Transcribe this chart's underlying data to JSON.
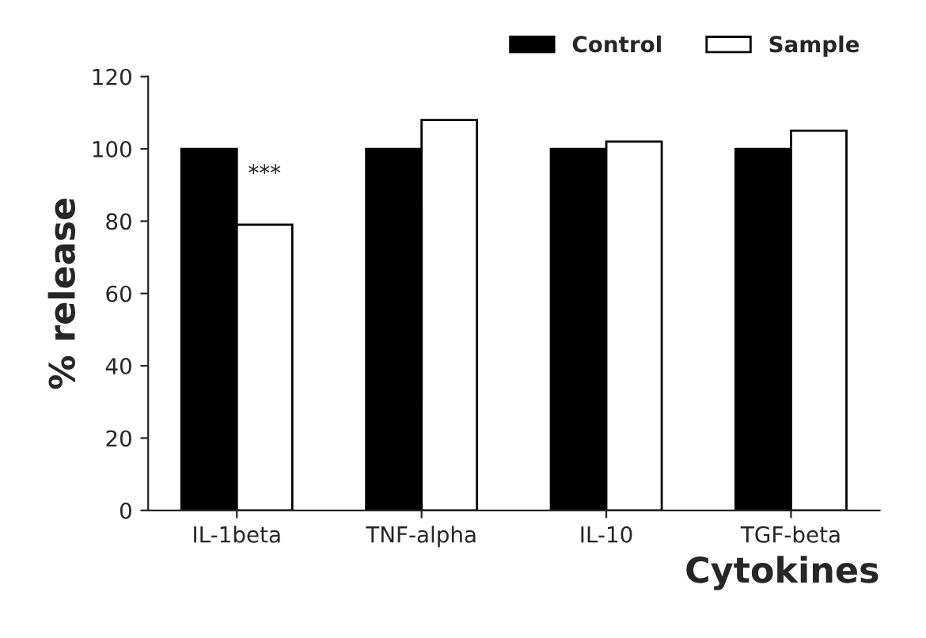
{
  "chart_data": {
    "type": "bar",
    "xlabel": "Cytokines",
    "ylabel": "% release",
    "categories": [
      "IL-1beta",
      "TNF-alpha",
      "IL-10",
      "TGF-beta"
    ],
    "series": [
      {
        "name": "Control",
        "color": "#000000",
        "values": [
          100,
          100,
          100,
          100
        ]
      },
      {
        "name": "Sample",
        "color": "#ffffff",
        "values": [
          79,
          108,
          102,
          105
        ]
      }
    ],
    "ylim": [
      0,
      120
    ],
    "yticks": [
      0,
      20,
      40,
      60,
      80,
      100,
      120
    ],
    "grid": false,
    "legend": "top right",
    "annotations": [
      {
        "text": "***",
        "x": "IL-1beta",
        "y": 90
      }
    ]
  }
}
